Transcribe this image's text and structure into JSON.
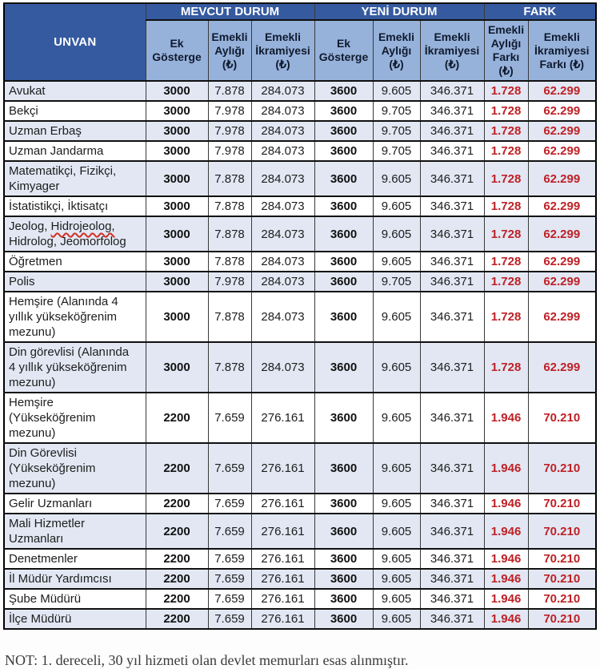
{
  "colors": {
    "header_blue": "#355AA0",
    "subheader_blue": "#96B2DB",
    "row_shade": "#E2E7F3",
    "fark_red": "#BE2126"
  },
  "table": {
    "header": {
      "unvan": "UNVAN",
      "groups": [
        {
          "label": "MEVCUT DURUM",
          "cols": [
            "Ek Gösterge",
            "Emekli Aylığı (₺)",
            "Emekli İkramiyesi (₺)"
          ]
        },
        {
          "label": "YENİ DURUM",
          "cols": [
            "Ek Gösterge",
            "Emekli Aylığı (₺)",
            "Emekli İkramiyesi (₺)"
          ]
        },
        {
          "label": "FARK",
          "cols": [
            "Emekli Aylığı Farkı (₺)",
            "Emekli İkramiyesi Farkı (₺)"
          ]
        }
      ]
    },
    "rows": [
      {
        "unvan": "Avukat",
        "values": [
          "3000",
          "7.878",
          "284.073",
          "3600",
          "9.605",
          "346.371",
          "1.728",
          "62.299"
        ]
      },
      {
        "unvan": "Bekçi",
        "values": [
          "3000",
          "7.978",
          "284.073",
          "3600",
          "9.705",
          "346.371",
          "1.728",
          "62.299"
        ]
      },
      {
        "unvan": "Uzman Erbaş",
        "values": [
          "3000",
          "7.978",
          "284.073",
          "3600",
          "9.705",
          "346.371",
          "1.728",
          "62.299"
        ]
      },
      {
        "unvan": "Uzman Jandarma",
        "values": [
          "3000",
          "7.978",
          "284.073",
          "3600",
          "9.705",
          "346.371",
          "1.728",
          "62.299"
        ]
      },
      {
        "unvan": "Matematikçi, Fizikçi, Kimyager",
        "values": [
          "3000",
          "7.878",
          "284.073",
          "3600",
          "9.605",
          "346.371",
          "1.728",
          "62.299"
        ]
      },
      {
        "unvan": "İstatistikçi, İktisatçı",
        "values": [
          "3000",
          "7.878",
          "284.073",
          "3600",
          "9.605",
          "346.371",
          "1.728",
          "62.299"
        ]
      },
      {
        "unvan": [
          {
            "text": "Jeolog, "
          },
          {
            "text": "Hidrojeolog,",
            "misspelled": true
          },
          {
            "text": " Hidrolog, Jeomorfolog"
          }
        ],
        "values": [
          "3000",
          "7.878",
          "284.073",
          "3600",
          "9.605",
          "346.371",
          "1.728",
          "62.299"
        ]
      },
      {
        "unvan": "Öğretmen",
        "values": [
          "3000",
          "7.878",
          "284.073",
          "3600",
          "9.605",
          "346.371",
          "1.728",
          "62.299"
        ]
      },
      {
        "unvan": "Polis",
        "values": [
          "3000",
          "7.978",
          "284.073",
          "3600",
          "9.705",
          "346.371",
          "1.728",
          "62.299"
        ]
      },
      {
        "unvan": "Hemşire (Alanında 4 yıllık yükseköğrenim mezunu)",
        "values": [
          "3000",
          "7.878",
          "284.073",
          "3600",
          "9.605",
          "346.371",
          "1.728",
          "62.299"
        ]
      },
      {
        "unvan": "Din görevlisi (Alanında 4 yıllık yükseköğrenim mezunu)",
        "values": [
          "3000",
          "7.878",
          "284.073",
          "3600",
          "9.605",
          "346.371",
          "1.728",
          "62.299"
        ]
      },
      {
        "unvan": "Hemşire (Yükseköğrenim mezunu)",
        "values": [
          "2200",
          "7.659",
          "276.161",
          "3600",
          "9.605",
          "346.371",
          "1.946",
          "70.210"
        ]
      },
      {
        "unvan": "Din Görevlisi (Yükseköğrenim mezunu)",
        "values": [
          "2200",
          "7.659",
          "276.161",
          "3600",
          "9.605",
          "346.371",
          "1.946",
          "70.210"
        ]
      },
      {
        "unvan": "Gelir Uzmanları",
        "values": [
          "2200",
          "7.659",
          "276.161",
          "3600",
          "9.605",
          "346.371",
          "1.946",
          "70.210"
        ]
      },
      {
        "unvan": "Mali Hizmetler Uzmanları",
        "values": [
          "2200",
          "7.659",
          "276.161",
          "3600",
          "9.605",
          "346.371",
          "1.946",
          "70.210"
        ]
      },
      {
        "unvan": "Denetmenler",
        "values": [
          "2200",
          "7.659",
          "276.161",
          "3600",
          "9.605",
          "346.371",
          "1.946",
          "70.210"
        ]
      },
      {
        "unvan": "İl Müdür Yardımcısı",
        "values": [
          "2200",
          "7.659",
          "276.161",
          "3600",
          "9.605",
          "346.371",
          "1.946",
          "70.210"
        ]
      },
      {
        "unvan": "Şube Müdürü",
        "values": [
          "2200",
          "7.659",
          "276.161",
          "3600",
          "9.605",
          "346.371",
          "1.946",
          "70.210"
        ]
      },
      {
        "unvan": "İlçe Müdürü",
        "values": [
          "2200",
          "7.659",
          "276.161",
          "3600",
          "9.605",
          "346.371",
          "1.946",
          "70.210"
        ]
      }
    ]
  },
  "note": "NOT: 1. dereceli, 30 yıl hizmeti olan devlet memurları esas alınmıştır."
}
